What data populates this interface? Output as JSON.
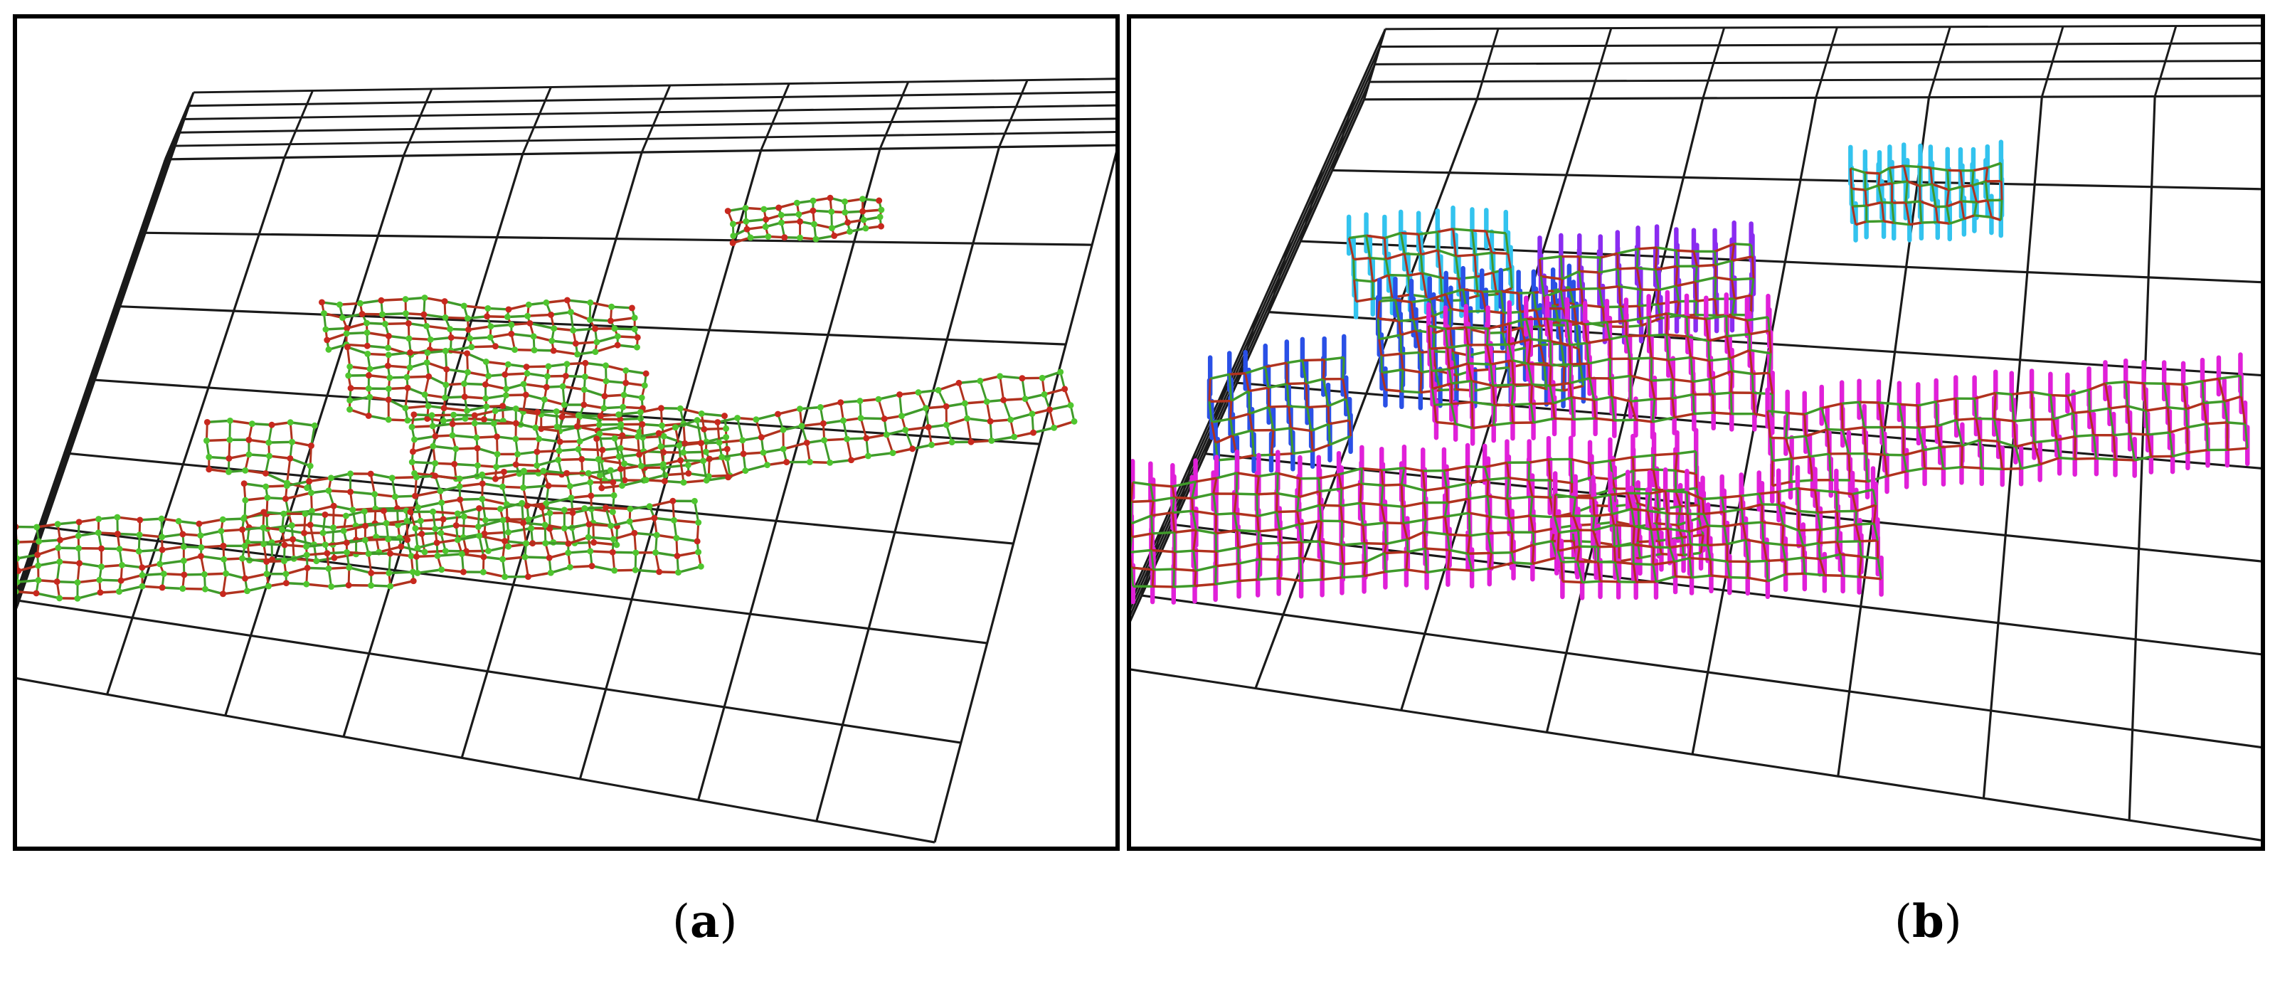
{
  "figure": {
    "panels": [
      {
        "id": "a",
        "caption_open": "(",
        "caption_letter": "a",
        "caption_close": ")",
        "scheme": "two-tone",
        "colors": {
          "link_a": "#b0321e",
          "link_b": "#3f9a2a",
          "node_a": "#c8281e",
          "node_b": "#4fc62f",
          "grid": "#1a1a1a"
        }
      },
      {
        "id": "b",
        "caption_open": "(",
        "caption_letter": "b",
        "caption_close": ")",
        "scheme": "colored-pillars",
        "colors": {
          "link_a": "#b0321e",
          "link_b": "#3f9a2a",
          "pillar_magenta": "#e020d8",
          "pillar_violet": "#8a2cf0",
          "pillar_blue": "#2a50e6",
          "pillar_cyan": "#33c3ee",
          "grid": "#1a1a1a"
        }
      }
    ]
  }
}
